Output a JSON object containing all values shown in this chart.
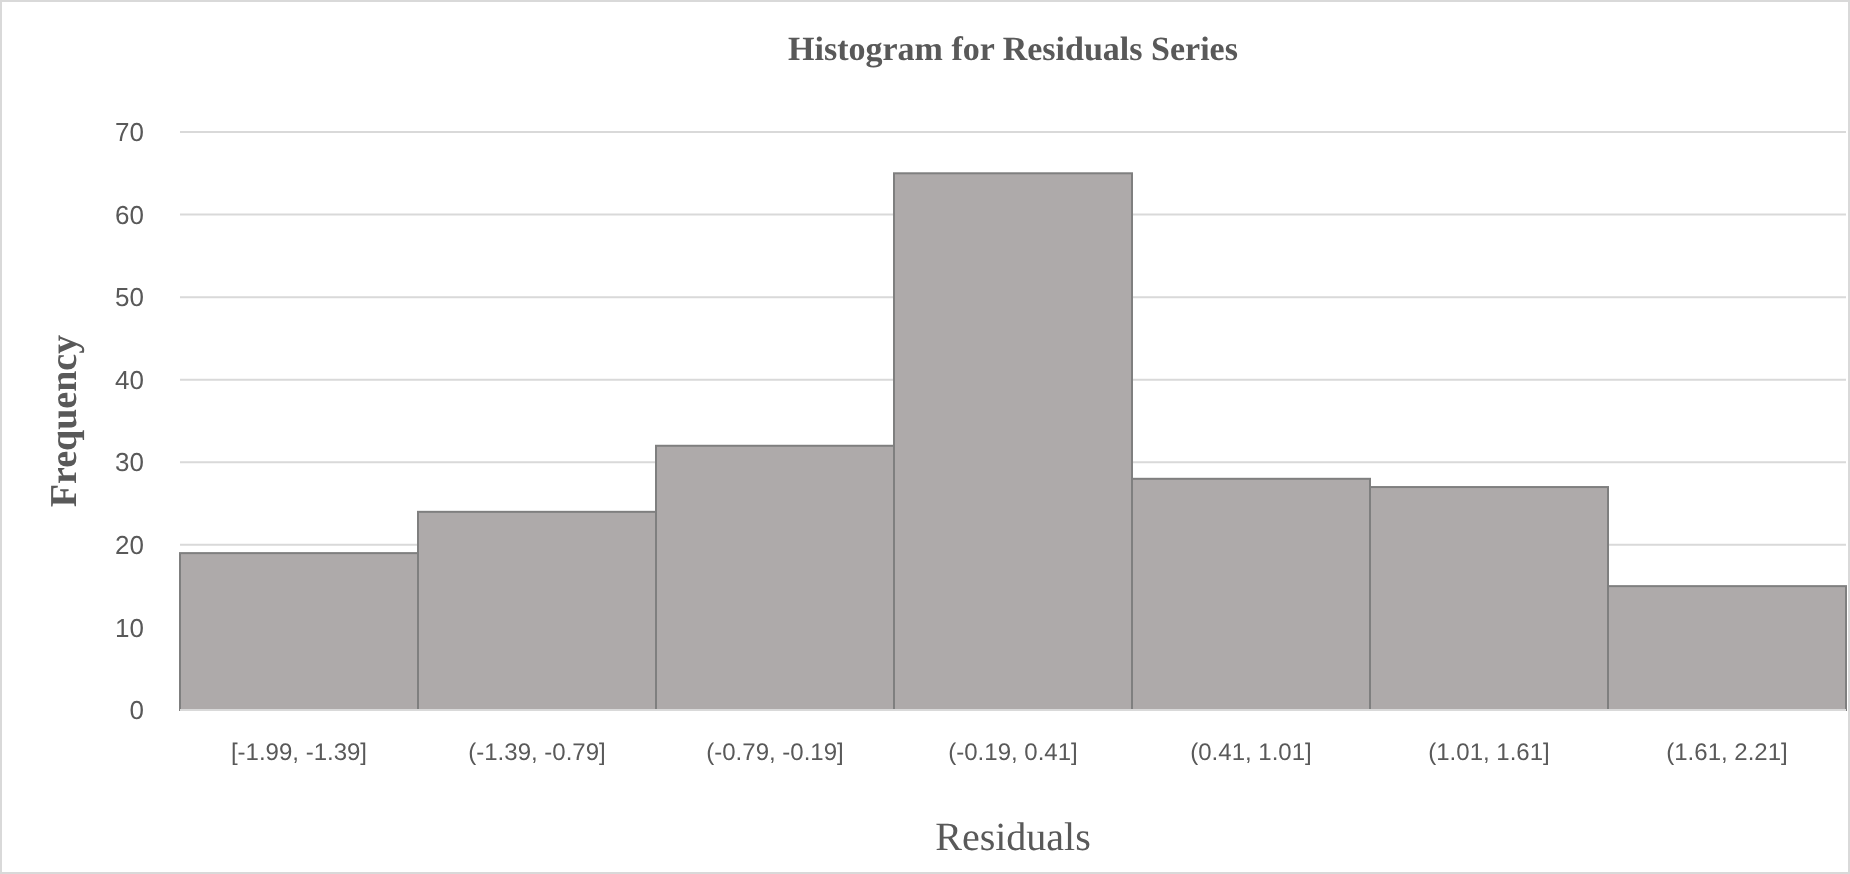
{
  "chart_data": {
    "type": "bar",
    "title": "Histogram  for Residuals Series",
    "xlabel": "Residuals",
    "ylabel": "Frequency",
    "categories": [
      "[-1.99, -1.39]",
      "(-1.39, -0.79]",
      "(-0.79, -0.19]",
      "(-0.19, 0.41]",
      "(0.41, 1.01]",
      "(1.01, 1.61]",
      "(1.61, 2.21]"
    ],
    "values": [
      19,
      24,
      32,
      65,
      28,
      27,
      15
    ],
    "color": "#aeaaaa",
    "ylim": [
      0,
      70
    ],
    "yticks": [
      0,
      10,
      20,
      30,
      40,
      50,
      60,
      70
    ],
    "grid": "y"
  }
}
